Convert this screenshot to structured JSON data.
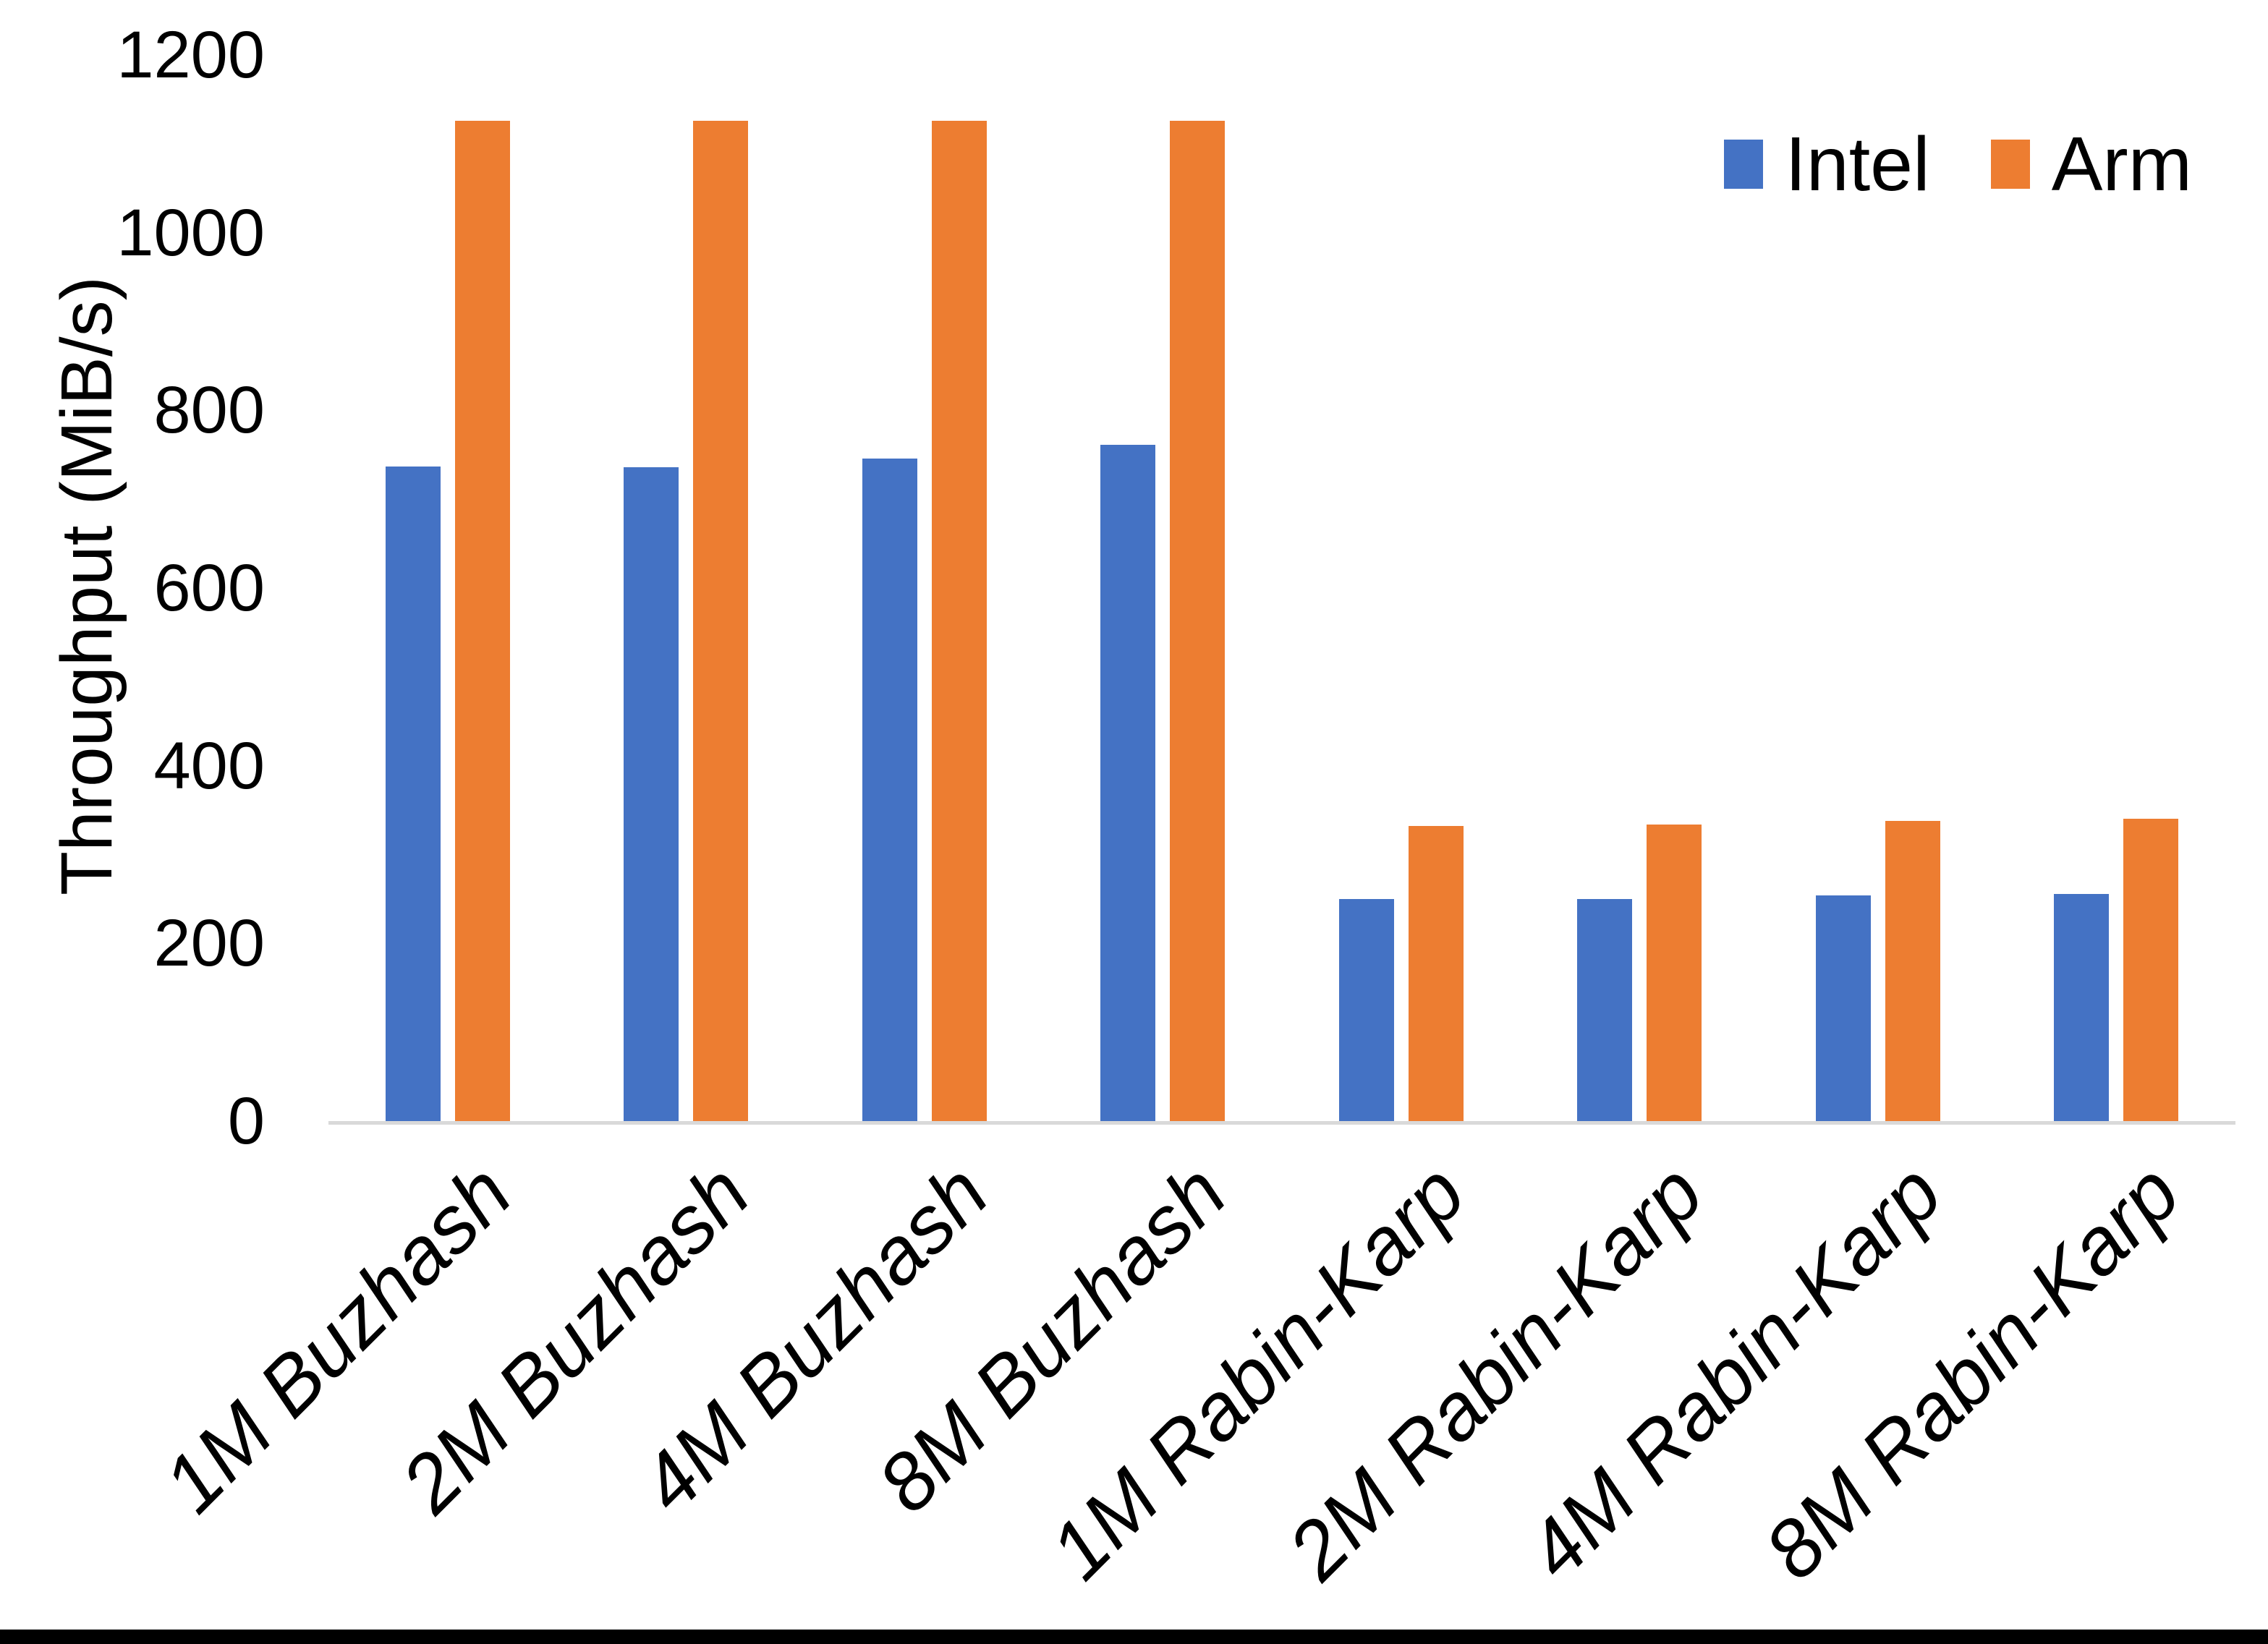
{
  "chart_data": {
    "type": "bar",
    "title": "",
    "xlabel": "",
    "ylabel": "Throughput (MiB/s)",
    "ylim": [
      0,
      1200
    ],
    "yticks": [
      0,
      200,
      400,
      600,
      800,
      1000,
      1200
    ],
    "grid": false,
    "legend_position": "top-right",
    "categories": [
      "1M Buzhash",
      "2M Buzhash",
      "4M Buzhash",
      "8M Buzhash",
      "1M Rabin-Karp",
      "2M Rabin-Karp",
      "4M Rabin-Karp",
      "8M Rabin-Karp"
    ],
    "series": [
      {
        "name": "Intel",
        "color": "#4472C4",
        "values": [
          737,
          736,
          746,
          761,
          250,
          250,
          254,
          256
        ]
      },
      {
        "name": "Arm",
        "color": "#ED7D31",
        "values": [
          1126,
          1126,
          1126,
          1126,
          332,
          334,
          338,
          340
        ]
      }
    ]
  },
  "colors": {
    "axis_line": "#D9D9D9",
    "text": "#000000",
    "bottom_border": "#000000",
    "background": "#FFFFFF"
  }
}
